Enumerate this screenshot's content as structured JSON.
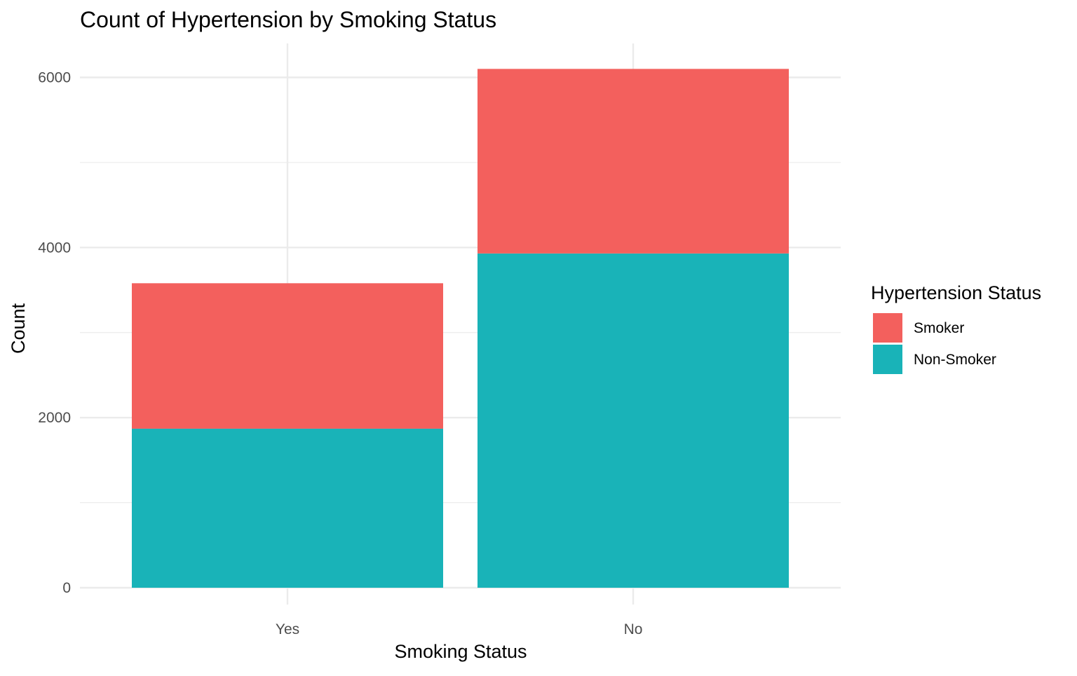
{
  "chart_data": {
    "type": "bar",
    "stacked": true,
    "title": "Count of Hypertension by Smoking Status",
    "xlabel": "Smoking Status",
    "ylabel": "Count",
    "categories": [
      "Yes",
      "No"
    ],
    "series": [
      {
        "name": "Smoker",
        "color": "#F3605D",
        "values": [
          1710,
          2170
        ]
      },
      {
        "name": "Non-Smoker",
        "color": "#19B3B8",
        "values": [
          1870,
          3930
        ]
      }
    ],
    "ylim": [
      0,
      6400
    ],
    "yticks": [
      0,
      2000,
      4000,
      6000
    ],
    "ytick_labels": [
      "0",
      "2000",
      "4000",
      "6000"
    ],
    "grid": true,
    "legend": {
      "title": "Hypertension Status",
      "position": "right",
      "items": [
        "Smoker",
        "Non-Smoker"
      ]
    }
  }
}
